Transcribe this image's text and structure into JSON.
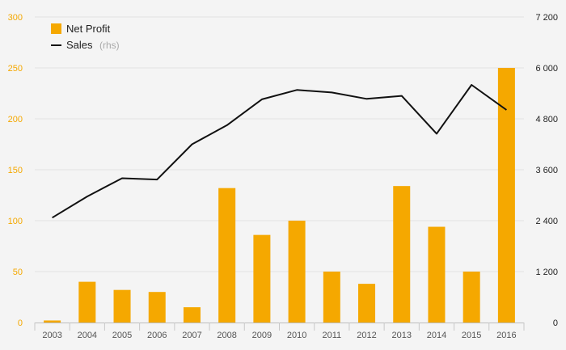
{
  "chart_data": {
    "type": "bar+line",
    "categories": [
      "2003",
      "2004",
      "2005",
      "2006",
      "2007",
      "2008",
      "2009",
      "2010",
      "2011",
      "2012",
      "2013",
      "2014",
      "2015",
      "2016"
    ],
    "series": [
      {
        "name": "Net Profit",
        "type": "bar",
        "axis": "left",
        "color": "#f5a800",
        "values": [
          2,
          40,
          32,
          30,
          15,
          132,
          86,
          100,
          50,
          38,
          134,
          94,
          50,
          250
        ]
      },
      {
        "name": "Sales",
        "name_suffix": "(rhs)",
        "type": "line",
        "axis": "right",
        "color": "#111111",
        "values": [
          2470,
          2970,
          3400,
          3370,
          4200,
          4650,
          5260,
          5480,
          5420,
          5270,
          5340,
          4450,
          5600,
          5010
        ]
      }
    ],
    "y_left": {
      "min": 0,
      "max": 300,
      "ticks": [
        "0",
        "50",
        "100",
        "150",
        "200",
        "250",
        "300"
      ]
    },
    "y_right": {
      "min": 0,
      "max": 7200,
      "ticks": [
        "0",
        "1 200",
        "2 400",
        "3 600",
        "4 800",
        "6 000",
        "7 200"
      ]
    },
    "grid": true,
    "legend_position": "top-left"
  }
}
